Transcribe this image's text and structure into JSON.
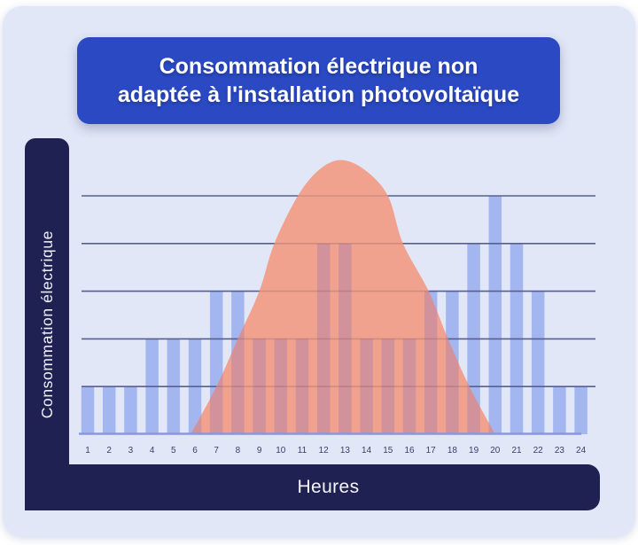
{
  "title_banner": {
    "lines": [
      "Consommation électrique non",
      "adaptée à l'installation photovoltaïque"
    ],
    "bg_color": "#2b49c3",
    "text_color": "#ffffff"
  },
  "axis_bars": {
    "bg_color": "#1e2152",
    "text_color": "#eef0fa"
  },
  "page": {
    "outer_background": "#ffffff",
    "card_background": "#e2e7f7"
  },
  "chart_data": {
    "type": "bar+area",
    "title": "Consommation électrique non adaptée à l'installation photovoltaïque",
    "xlabel": "Heures",
    "ylabel": "Consommation électrique",
    "categories": [
      1,
      2,
      3,
      4,
      5,
      6,
      7,
      8,
      9,
      10,
      11,
      12,
      13,
      14,
      15,
      16,
      17,
      18,
      19,
      20,
      21,
      22,
      23,
      24
    ],
    "series": [
      {
        "name": "consommation-electrique-barres",
        "type": "bar",
        "values": [
          1,
          1,
          1,
          2,
          2,
          2,
          3,
          3,
          2,
          2,
          2,
          4,
          4,
          2,
          2,
          2,
          3,
          3,
          4,
          5,
          4,
          3,
          1,
          1
        ]
      },
      {
        "name": "courbe-cloche-photovoltaique",
        "type": "area",
        "points": [
          [
            5.8,
            0
          ],
          [
            7.0,
            1
          ],
          [
            8.0,
            2
          ],
          [
            9.0,
            3
          ],
          [
            9.7,
            4
          ],
          [
            10.8,
            5
          ],
          [
            11.8,
            5.55
          ],
          [
            12.8,
            5.75
          ],
          [
            13.9,
            5.55
          ],
          [
            15.0,
            5
          ],
          [
            15.7,
            4
          ],
          [
            16.9,
            3
          ],
          [
            17.8,
            2
          ],
          [
            18.8,
            1
          ],
          [
            20.0,
            0
          ]
        ]
      }
    ],
    "ylim": [
      0,
      5.75
    ],
    "gridline_levels": [
      1,
      2,
      3,
      4,
      5
    ],
    "grid": "horizontal-only",
    "legend": "none",
    "colors": {
      "bar": "#a3b6ef",
      "bar_under_curve": "#d2929c",
      "curve": "#f0a28e",
      "gridline": "#56608e",
      "baseline": "#8a96dd",
      "tick_text": "#383e66"
    }
  }
}
